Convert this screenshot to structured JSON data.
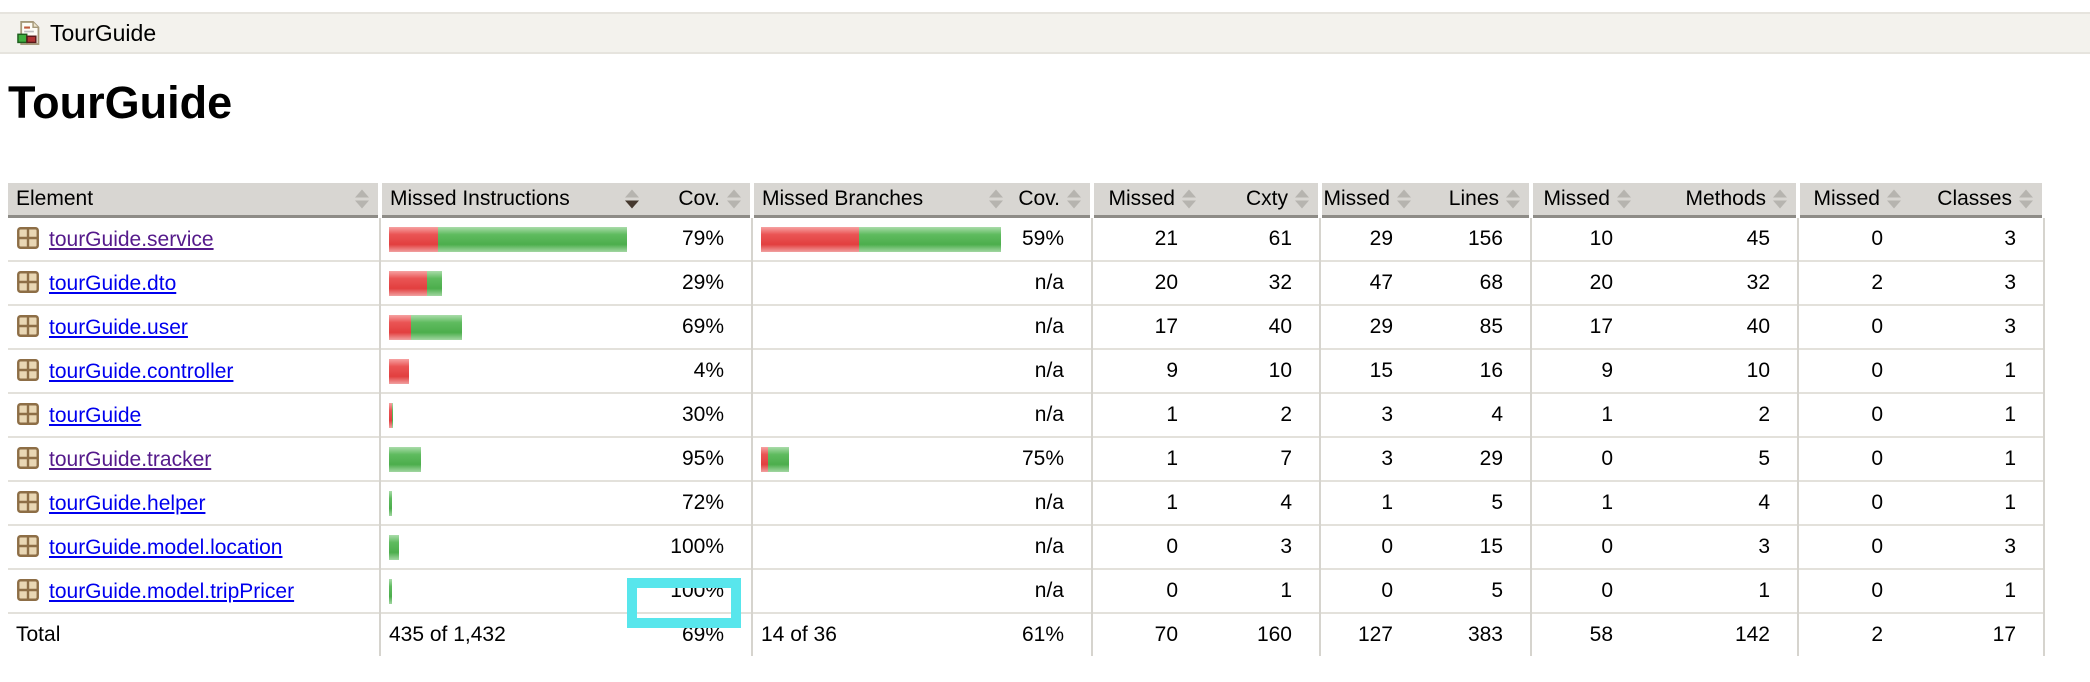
{
  "breadcrumb": {
    "label": "TourGuide"
  },
  "title": "TourGuide",
  "sort": {
    "column": "Missed Instructions",
    "direction": "desc"
  },
  "colors": {
    "highlight": "#58e6ec",
    "bar_red": "#e23f3f",
    "bar_green": "#4cae4c",
    "link": "#0000ee",
    "link_visited": "#551a8b",
    "header_bg": "#d8d6d2"
  },
  "table": {
    "headers": {
      "element": "Element",
      "missed_instructions": "Missed Instructions",
      "instr_cov": "Cov.",
      "missed_branches": "Missed Branches",
      "branch_cov": "Cov.",
      "missed_cxty": "Missed",
      "cxty": "Cxty",
      "missed_lines": "Missed",
      "lines": "Lines",
      "missed_methods": "Missed",
      "methods": "Methods",
      "missed_classes": "Missed",
      "classes": "Classes"
    },
    "rows": [
      {
        "name": "tourGuide.service",
        "visited": true,
        "instr_bar": {
          "red": 49,
          "green": 189
        },
        "instr_cov": "79%",
        "branch_bar": {
          "red": 98,
          "green": 142
        },
        "branch_cov": "59%",
        "missed_cxty": "21",
        "cxty": "61",
        "missed_lines": "29",
        "lines": "156",
        "missed_methods": "10",
        "methods": "45",
        "missed_classes": "0",
        "classes": "3"
      },
      {
        "name": "tourGuide.dto",
        "visited": false,
        "instr_bar": {
          "red": 38,
          "green": 15
        },
        "instr_cov": "29%",
        "branch_cov": "n/a",
        "missed_cxty": "20",
        "cxty": "32",
        "missed_lines": "47",
        "lines": "68",
        "missed_methods": "20",
        "methods": "32",
        "missed_classes": "2",
        "classes": "3"
      },
      {
        "name": "tourGuide.user",
        "visited": false,
        "instr_bar": {
          "red": 22,
          "green": 51
        },
        "instr_cov": "69%",
        "branch_cov": "n/a",
        "missed_cxty": "17",
        "cxty": "40",
        "missed_lines": "29",
        "lines": "85",
        "missed_methods": "17",
        "methods": "40",
        "missed_classes": "0",
        "classes": "3"
      },
      {
        "name": "tourGuide.controller",
        "visited": false,
        "instr_bar": {
          "red": 20,
          "green": 0
        },
        "instr_cov": "4%",
        "branch_cov": "n/a",
        "missed_cxty": "9",
        "cxty": "10",
        "missed_lines": "15",
        "lines": "16",
        "missed_methods": "9",
        "methods": "10",
        "missed_classes": "0",
        "classes": "1"
      },
      {
        "name": "tourGuide",
        "visited": false,
        "instr_bar": {
          "red": 3,
          "green": 1
        },
        "instr_cov": "30%",
        "branch_cov": "n/a",
        "missed_cxty": "1",
        "cxty": "2",
        "missed_lines": "3",
        "lines": "4",
        "missed_methods": "1",
        "methods": "2",
        "missed_classes": "0",
        "classes": "1"
      },
      {
        "name": "tourGuide.tracker",
        "visited": true,
        "instr_bar": {
          "red": 0,
          "green": 32
        },
        "instr_cov": "95%",
        "branch_bar": {
          "red": 7,
          "green": 21
        },
        "branch_cov": "75%",
        "missed_cxty": "1",
        "cxty": "7",
        "missed_lines": "3",
        "lines": "29",
        "missed_methods": "0",
        "methods": "5",
        "missed_classes": "0",
        "classes": "1"
      },
      {
        "name": "tourGuide.helper",
        "visited": false,
        "instr_bar": {
          "red": 0,
          "green": 3
        },
        "instr_cov": "72%",
        "branch_cov": "n/a",
        "missed_cxty": "1",
        "cxty": "4",
        "missed_lines": "1",
        "lines": "5",
        "missed_methods": "1",
        "methods": "4",
        "missed_classes": "0",
        "classes": "1"
      },
      {
        "name": "tourGuide.model.location",
        "visited": false,
        "instr_bar": {
          "red": 0,
          "green": 10
        },
        "instr_cov": "100%",
        "branch_cov": "n/a",
        "missed_cxty": "0",
        "cxty": "3",
        "missed_lines": "0",
        "lines": "15",
        "missed_methods": "0",
        "methods": "3",
        "missed_classes": "0",
        "classes": "3"
      },
      {
        "name": "tourGuide.model.tripPricer",
        "visited": false,
        "instr_bar": {
          "red": 0,
          "green": 3
        },
        "instr_cov": "100%",
        "branch_cov": "n/a",
        "missed_cxty": "0",
        "cxty": "1",
        "missed_lines": "0",
        "lines": "5",
        "missed_methods": "0",
        "methods": "1",
        "missed_classes": "0",
        "classes": "1"
      }
    ],
    "total": {
      "label": "Total",
      "instructions": "435 of 1,432",
      "instr_cov": "69%",
      "branches": "14 of 36",
      "branch_cov": "61%",
      "missed_cxty": "70",
      "cxty": "160",
      "missed_lines": "127",
      "lines": "383",
      "missed_methods": "58",
      "methods": "142",
      "missed_classes": "2",
      "classes": "17"
    }
  }
}
